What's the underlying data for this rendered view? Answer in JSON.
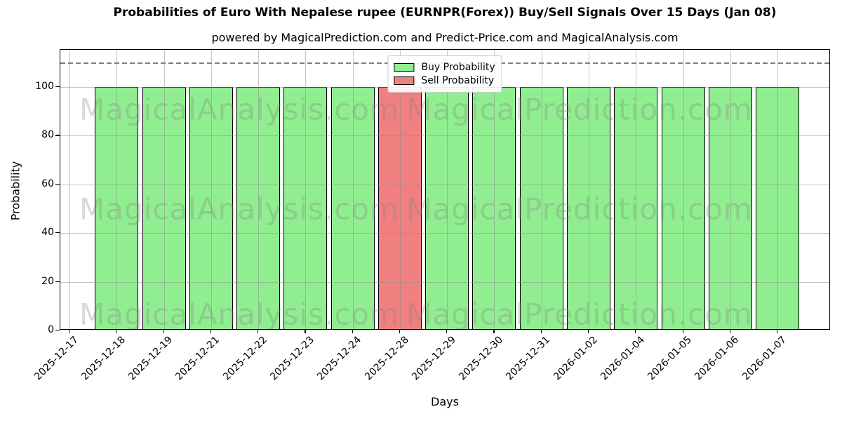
{
  "chart_data": {
    "type": "bar",
    "title": "Probabilities of Euro With Nepalese rupee (EURNPR(Forex)) Buy/Sell Signals Over 15 Days (Jan 08)",
    "subtitle": "powered by MagicalPrediction.com and Predict-Price.com and MagicalAnalysis.com",
    "xlabel": "Days",
    "ylabel": "Probability",
    "categories": [
      "2025-12-17",
      "2025-12-18",
      "2025-12-19",
      "2025-12-21",
      "2025-12-22",
      "2025-12-23",
      "2025-12-24",
      "2025-12-28",
      "2025-12-29",
      "2025-12-30",
      "2025-12-31",
      "2026-01-02",
      "2026-01-04",
      "2026-01-05",
      "2026-01-06",
      "2026-01-07"
    ],
    "series": [
      {
        "name": "Buy Probability",
        "color": "#90EE90",
        "values": [
          0,
          100,
          100,
          100,
          100,
          100,
          100,
          0,
          100,
          100,
          100,
          100,
          100,
          100,
          100,
          100
        ]
      },
      {
        "name": "Sell Probability",
        "color": "#F08080",
        "values": [
          0,
          0,
          0,
          0,
          0,
          0,
          0,
          100,
          0,
          0,
          0,
          0,
          0,
          0,
          0,
          0
        ]
      }
    ],
    "ylim": [
      0,
      115.3
    ],
    "yticks": [
      0,
      20,
      40,
      60,
      80,
      100
    ],
    "threshold_line": {
      "y": 110,
      "style": "dashed",
      "color": "#7f7f7f"
    },
    "grid": true,
    "bar_edge_color": "#000000",
    "legend_position": "upper center",
    "watermarks": [
      "MagicalAnalysis.com",
      "MagicalPrediction.com"
    ]
  }
}
